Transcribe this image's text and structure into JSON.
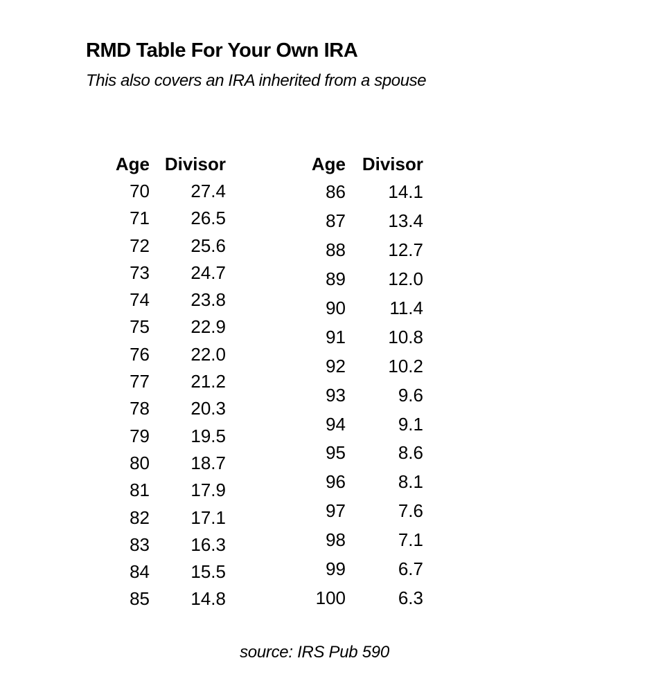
{
  "page": {
    "title": "RMD Table For Your Own IRA",
    "subtitle": "This also covers an IRA inherited from a spouse",
    "source": "source: IRS Pub 590"
  },
  "table": {
    "header": {
      "age": "Age",
      "divisor": "Divisor"
    },
    "left_rows": [
      {
        "age": "70",
        "divisor": "27.4"
      },
      {
        "age": "71",
        "divisor": "26.5"
      },
      {
        "age": "72",
        "divisor": "25.6"
      },
      {
        "age": "73",
        "divisor": "24.7"
      },
      {
        "age": "74",
        "divisor": "23.8"
      },
      {
        "age": "75",
        "divisor": "22.9"
      },
      {
        "age": "76",
        "divisor": "22.0"
      },
      {
        "age": "77",
        "divisor": "21.2"
      },
      {
        "age": "78",
        "divisor": "20.3"
      },
      {
        "age": "79",
        "divisor": "19.5"
      },
      {
        "age": "80",
        "divisor": "18.7"
      },
      {
        "age": "81",
        "divisor": "17.9"
      },
      {
        "age": "82",
        "divisor": "17.1"
      },
      {
        "age": "83",
        "divisor": "16.3"
      },
      {
        "age": "84",
        "divisor": "15.5"
      },
      {
        "age": "85",
        "divisor": "14.8"
      }
    ],
    "right_rows": [
      {
        "age": "86",
        "divisor": "14.1"
      },
      {
        "age": "87",
        "divisor": "13.4"
      },
      {
        "age": "88",
        "divisor": "12.7"
      },
      {
        "age": "89",
        "divisor": "12.0"
      },
      {
        "age": "90",
        "divisor": "11.4"
      },
      {
        "age": "91",
        "divisor": "10.8"
      },
      {
        "age": "92",
        "divisor": "10.2"
      },
      {
        "age": "93",
        "divisor": "9.6"
      },
      {
        "age": "94",
        "divisor": "9.1"
      },
      {
        "age": "95",
        "divisor": "8.6"
      },
      {
        "age": "96",
        "divisor": "8.1"
      },
      {
        "age": "97",
        "divisor": "7.6"
      },
      {
        "age": "98",
        "divisor": "7.1"
      },
      {
        "age": "99",
        "divisor": "6.7"
      },
      {
        "age": "100",
        "divisor": "6.3"
      }
    ]
  }
}
